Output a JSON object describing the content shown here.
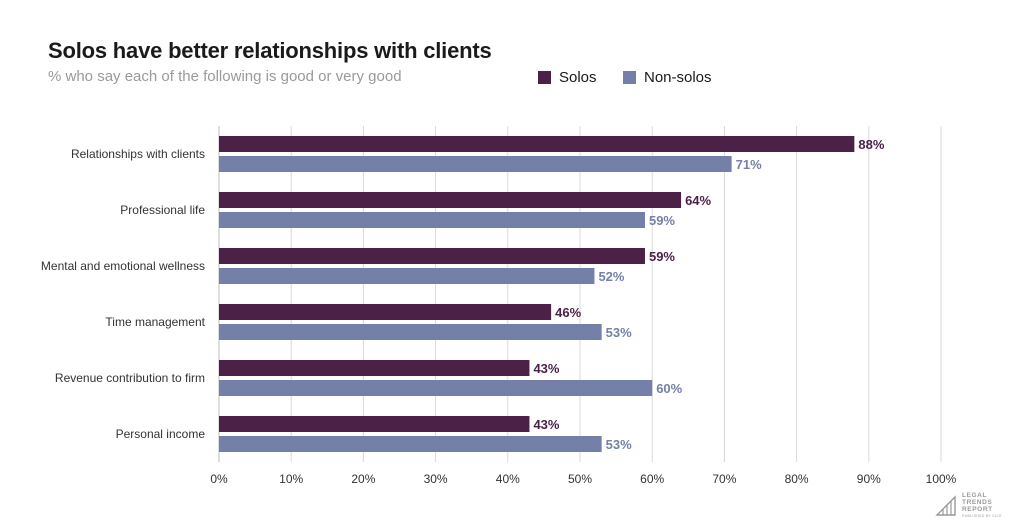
{
  "header": {
    "title": "Solos have better relationships with clients",
    "subtitle": "% who say each of the following is good or very good"
  },
  "colors": {
    "solos": "#4b2148",
    "non_solos": "#7580a8",
    "grid": "#d9d9d9",
    "axis_text": "#333333"
  },
  "logo": {
    "line1": "LEGAL",
    "line2": "TRENDS",
    "line3": "REPORT",
    "line4": "PUBLISHED BY CLIO"
  },
  "chart_data": {
    "type": "bar",
    "orientation": "horizontal",
    "title": "Solos have better relationships with clients",
    "subtitle": "% who say each of the following is good or very good",
    "categories": [
      "Relationships with clients",
      "Professional life",
      "Mental and emotional wellness",
      "Time management",
      "Revenue contribution to firm",
      "Personal income"
    ],
    "series": [
      {
        "name": "Solos",
        "values": [
          88,
          64,
          59,
          46,
          43,
          43
        ],
        "labels": [
          "88%",
          "64%",
          "59%",
          "46%",
          "43%",
          "43%"
        ]
      },
      {
        "name": "Non-solos",
        "values": [
          71,
          59,
          52,
          53,
          60,
          53
        ],
        "labels": [
          "71%",
          "59%",
          "52%",
          "53%",
          "60%",
          "53%"
        ]
      }
    ],
    "xlim": [
      0,
      100
    ],
    "xticks": [
      "0%",
      "10%",
      "20%",
      "30%",
      "40%",
      "50%",
      "60%",
      "70%",
      "80%",
      "90%",
      "100%"
    ],
    "grid": true,
    "legend": "top-right"
  }
}
